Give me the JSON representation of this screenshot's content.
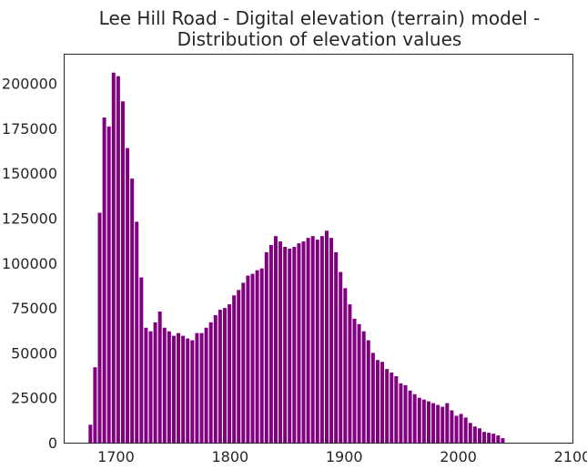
{
  "chart_data": {
    "type": "bar",
    "title_lines": [
      "Lee Hill Road - Digital elevation (terrain) model -",
      "Distribution of elevation values"
    ],
    "xlabel": "",
    "ylabel": "",
    "xlim": [
      1655,
      2100
    ],
    "ylim": [
      0,
      216000
    ],
    "xticks": [
      1700,
      1800,
      1900,
      2000,
      2100
    ],
    "yticks": [
      0,
      25000,
      50000,
      75000,
      100000,
      125000,
      150000,
      175000,
      200000
    ],
    "bar_color": "#800080",
    "grid": false,
    "bins": {
      "start": 1676,
      "width": 4.06,
      "counts": [
        10000,
        42000,
        128000,
        181000,
        176000,
        206000,
        204000,
        190000,
        164000,
        147000,
        123000,
        92000,
        64000,
        62000,
        67000,
        73000,
        64000,
        62000,
        59500,
        61000,
        59500,
        58000,
        57000,
        61000,
        61000,
        64000,
        67000,
        71000,
        74000,
        75000,
        77000,
        82000,
        85000,
        89000,
        93000,
        94000,
        96000,
        97000,
        106000,
        110000,
        115000,
        112000,
        109000,
        108000,
        109000,
        111000,
        112000,
        114000,
        115000,
        113000,
        115000,
        118000,
        114000,
        106000,
        95000,
        86000,
        77000,
        69000,
        66000,
        62000,
        57000,
        50000,
        46000,
        45000,
        41000,
        39000,
        37000,
        33000,
        32000,
        29000,
        27000,
        25000,
        24000,
        23000,
        22000,
        21000,
        20000,
        22000,
        18000,
        15000,
        16000,
        14000,
        11000,
        9000,
        8000,
        6000,
        5500,
        5000,
        4000,
        2500
      ]
    }
  }
}
